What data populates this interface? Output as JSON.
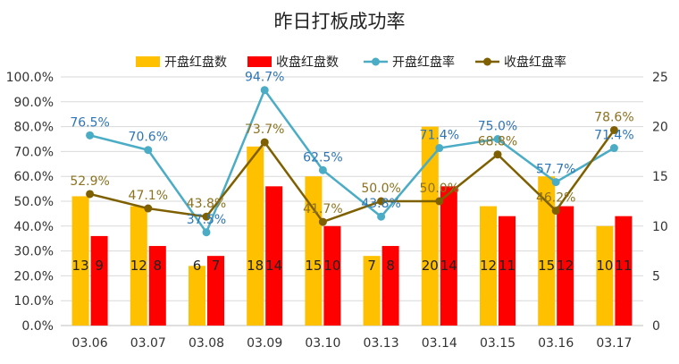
{
  "chart_data": {
    "type": "bar",
    "title": "昨日打板成功率",
    "categories": [
      "03.06",
      "03.07",
      "03.08",
      "03.09",
      "03.10",
      "03.13",
      "03.14",
      "03.15",
      "03.16",
      "03.17"
    ],
    "series": [
      {
        "name": "开盘红盘数",
        "type": "bar",
        "axis": "right",
        "color": "#FFC000",
        "values": [
          13,
          12,
          6,
          18,
          15,
          7,
          20,
          12,
          15,
          10
        ]
      },
      {
        "name": "收盘红盘数",
        "type": "bar",
        "axis": "right",
        "color": "#FF0000",
        "values": [
          9,
          8,
          7,
          14,
          10,
          8,
          14,
          11,
          12,
          11
        ]
      },
      {
        "name": "开盘红盘率",
        "type": "line",
        "axis": "left",
        "color": "#4BACC6",
        "values": [
          76.5,
          70.6,
          37.5,
          94.7,
          62.5,
          43.8,
          71.4,
          75.0,
          57.7,
          71.4
        ],
        "labels": [
          "76.5%",
          "70.6%",
          "37.5%",
          "94.7%",
          "62.5%",
          "43.8%",
          "71.4%",
          "75.0%",
          "57.7%",
          "71.4%"
        ]
      },
      {
        "name": "收盘红盘率",
        "type": "line",
        "axis": "left",
        "color": "#7F6000",
        "values": [
          52.9,
          47.1,
          43.8,
          73.7,
          41.7,
          50.0,
          50.0,
          68.8,
          46.2,
          78.6
        ],
        "labels": [
          "52.9%",
          "47.1%",
          "43.8%",
          "73.7%",
          "41.7%",
          "50.0%",
          "50.0%",
          "68.8%",
          "46.2%",
          "78.6%"
        ]
      }
    ],
    "y_left": {
      "range": [
        0,
        100
      ],
      "ticks": [
        "0.0%",
        "10.0%",
        "20.0%",
        "30.0%",
        "40.0%",
        "50.0%",
        "60.0%",
        "70.0%",
        "80.0%",
        "90.0%",
        "100.0%"
      ]
    },
    "y_right": {
      "range": [
        0,
        25
      ],
      "ticks": [
        "0",
        "5",
        "10",
        "15",
        "20",
        "25"
      ]
    },
    "grid": true,
    "legend": "top"
  }
}
